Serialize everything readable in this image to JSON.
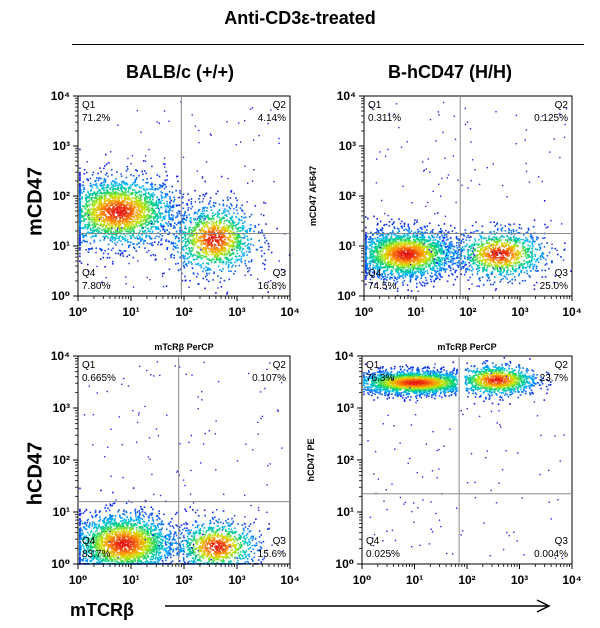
{
  "figure": {
    "title": "Anti-CD3ε-treated",
    "columns": [
      "BALB/c (+/+)",
      "B-hCD47 (H/H)"
    ],
    "rows": [
      "mCD47",
      "hCD47"
    ],
    "x_axis_label": "mTCRβ"
  },
  "chart_data": [
    {
      "type": "scatter",
      "title": "",
      "xlabel": "",
      "ylabel": "",
      "xlim": [
        0,
        4
      ],
      "ylim": [
        0,
        4
      ],
      "xticks": [
        "10⁰",
        "10¹",
        "10²",
        "10³",
        "10⁴"
      ],
      "yticks": [
        "10⁰",
        "10¹",
        "10²",
        "10³",
        "10⁴"
      ],
      "gate": {
        "x": 1.95,
        "y": 1.25
      },
      "quadrants": [
        {
          "name": "Q1",
          "pct": "71.2%"
        },
        {
          "name": "Q2",
          "pct": "4.14%"
        },
        {
          "name": "Q3",
          "pct": "16.8%"
        },
        {
          "name": "Q4",
          "pct": "7.80%"
        }
      ],
      "populations": [
        {
          "cx": 0.75,
          "cy": 1.7,
          "sx": 0.55,
          "sy": 0.35,
          "n": 2200
        },
        {
          "cx": 2.55,
          "cy": 1.15,
          "sx": 0.4,
          "sy": 0.35,
          "n": 1200
        }
      ]
    },
    {
      "type": "scatter",
      "title": "",
      "xlabel": "",
      "ylabel": "mCD47 AF647",
      "xlim": [
        0,
        4
      ],
      "ylim": [
        0,
        4
      ],
      "xticks": [
        "10⁰",
        "10¹",
        "10²",
        "10³",
        "10⁴"
      ],
      "yticks": [
        "10⁰",
        "10¹",
        "10²",
        "10³",
        "10⁴"
      ],
      "gate": {
        "x": 1.85,
        "y": 1.25
      },
      "quadrants": [
        {
          "name": "Q1",
          "pct": "0.311%"
        },
        {
          "name": "Q2",
          "pct": "0.125%"
        },
        {
          "name": "Q3",
          "pct": "25.0%"
        },
        {
          "name": "Q4",
          "pct": "74.5%"
        }
      ],
      "populations": [
        {
          "cx": 0.8,
          "cy": 0.85,
          "sx": 0.5,
          "sy": 0.25,
          "n": 2200
        },
        {
          "cx": 2.6,
          "cy": 0.85,
          "sx": 0.45,
          "sy": 0.25,
          "n": 1000
        }
      ]
    },
    {
      "type": "scatter",
      "title": "mTcRβ PerCP",
      "xlabel": "",
      "ylabel": "",
      "xlim": [
        0,
        4
      ],
      "ylim": [
        0,
        4
      ],
      "xticks": [
        "10⁰",
        "10¹",
        "10²",
        "10³",
        "10⁴"
      ],
      "yticks": [
        "10⁰",
        "10¹",
        "10²",
        "10³",
        "10⁴"
      ],
      "gate": {
        "x": 1.9,
        "y": 1.2
      },
      "quadrants": [
        {
          "name": "Q1",
          "pct": "0.665%"
        },
        {
          "name": "Q2",
          "pct": "0.107%"
        },
        {
          "name": "Q3",
          "pct": "15.6%"
        },
        {
          "name": "Q4",
          "pct": "83.7%"
        }
      ],
      "populations": [
        {
          "cx": 0.85,
          "cy": 0.4,
          "sx": 0.5,
          "sy": 0.3,
          "n": 2200
        },
        {
          "cx": 2.6,
          "cy": 0.35,
          "sx": 0.4,
          "sy": 0.25,
          "n": 900
        }
      ]
    },
    {
      "type": "scatter",
      "title": "mTcRβ PerCP",
      "xlabel": "",
      "ylabel": "hCD47 PE",
      "xlim": [
        0,
        4
      ],
      "ylim": [
        0,
        4
      ],
      "xticks": [
        "10⁰",
        "10¹",
        "10²",
        "10³",
        "10⁴"
      ],
      "yticks": [
        "10⁰",
        "10¹",
        "10²",
        "10³",
        "10⁴"
      ],
      "gate": {
        "x": 1.85,
        "y": 1.35
      },
      "quadrants": [
        {
          "name": "Q1",
          "pct": "76.3%"
        },
        {
          "name": "Q2",
          "pct": "23.7%"
        },
        {
          "name": "Q3",
          "pct": "0.004%"
        },
        {
          "name": "Q4",
          "pct": "0.025%"
        }
      ],
      "populations": [
        {
          "cx": 1.0,
          "cy": 3.5,
          "sx": 0.6,
          "sy": 0.12,
          "n": 2200,
          "xmin": 0.0,
          "xmax": 1.8
        },
        {
          "cx": 2.55,
          "cy": 3.55,
          "sx": 0.4,
          "sy": 0.15,
          "n": 1000,
          "xmin": 1.95,
          "xmax": 3.6
        }
      ]
    }
  ]
}
